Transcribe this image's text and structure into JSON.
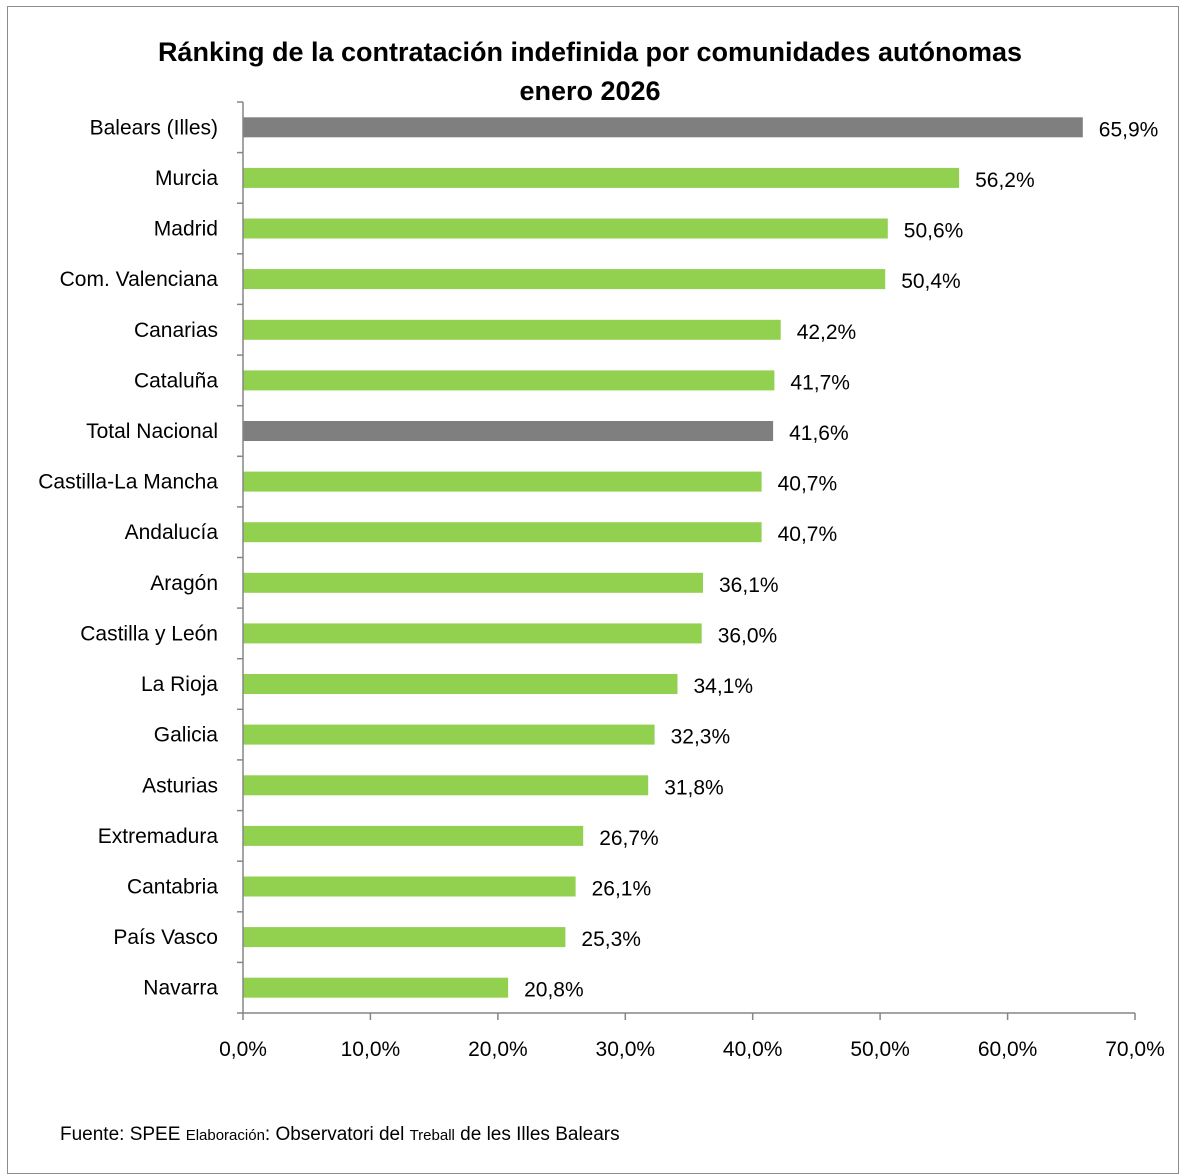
{
  "chart_data": {
    "type": "bar",
    "orientation": "horizontal",
    "title": "Ránking de la contratación indefinida por comunidades autónomas",
    "subtitle": "enero 2026",
    "categories": [
      "Balears (Illes)",
      "Murcia",
      "Madrid",
      "Com. Valenciana",
      "Canarias",
      "Cataluña",
      "Total Nacional",
      "Castilla-La Mancha",
      "Andalucía",
      "Aragón",
      "Castilla y León",
      "La Rioja",
      "Galicia",
      "Asturias",
      "Extremadura",
      "Cantabria",
      "País Vasco",
      "Navarra"
    ],
    "values": [
      65.9,
      56.2,
      50.6,
      50.4,
      42.2,
      41.7,
      41.6,
      40.7,
      40.7,
      36.1,
      36.0,
      34.1,
      32.3,
      31.8,
      26.7,
      26.1,
      25.3,
      20.8
    ],
    "data_labels": [
      "65,9%",
      "56,2%",
      "50,6%",
      "50,4%",
      "42,2%",
      "41,7%",
      "41,6%",
      "40,7%",
      "40,7%",
      "36,1%",
      "36,0%",
      "34,1%",
      "32,3%",
      "31,8%",
      "26,7%",
      "26,1%",
      "25,3%",
      "20,8%"
    ],
    "highlighted": [
      "Balears (Illes)",
      "Total Nacional"
    ],
    "xlim": [
      0,
      70
    ],
    "xticks": [
      0,
      10,
      20,
      30,
      40,
      50,
      60,
      70
    ],
    "xtick_labels": [
      "0,0%",
      "10,0%",
      "20,0%",
      "30,0%",
      "40,0%",
      "50,0%",
      "60,0%",
      "70,0%"
    ],
    "grid": false,
    "legend": "none",
    "colors": {
      "default_bar": "#92d050",
      "highlight_bar": "#7f7f7f",
      "axis": "#868686"
    }
  },
  "footer": {
    "fuente_label": "Fuente: SPEE ",
    "elaboracion_label": "Elaboración",
    "elaboracion_value": ": Observatori del ",
    "treball": "Treball",
    "rest": " de les Illes Balears"
  }
}
